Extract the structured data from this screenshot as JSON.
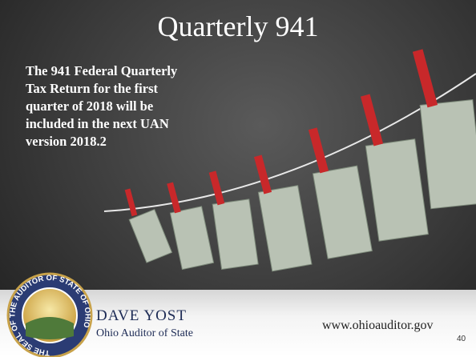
{
  "slide": {
    "title": "Quarterly 941",
    "body_lines": [
      "The 941 Federal Quarterly",
      "Tax Return for the first",
      "quarter of 2018 will be",
      "included in the next UAN",
      "version 2018.2"
    ],
    "footer": {
      "seal_text": "THE SEAL OF THE AUDITOR OF STATE OF OHIO",
      "name": "DAVE YOST",
      "role": "Ohio Auditor of State",
      "website": "www.ohioauditor.gov",
      "page_number": "40"
    }
  }
}
